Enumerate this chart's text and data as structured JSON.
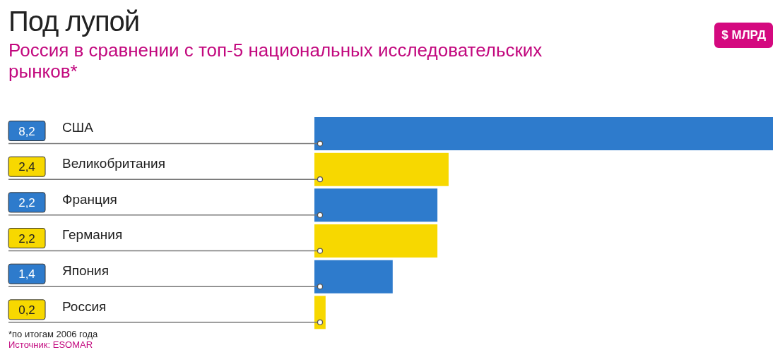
{
  "chart_data": {
    "type": "bar",
    "orientation": "horizontal",
    "title": "Под лупой",
    "subtitle": "Россия в сравнении с топ-5 национальных исследовательских рынков*",
    "categories": [
      "США",
      "Великобритания",
      "Франция",
      "Германия",
      "Япония",
      "Россия"
    ],
    "values": [
      8.2,
      2.4,
      2.2,
      2.2,
      1.4,
      0.2
    ],
    "value_labels": [
      "8,2",
      "2,4",
      "2,2",
      "2,2",
      "1,4",
      "0,2"
    ],
    "colors": [
      "#2e7bcc",
      "#f7d800",
      "#2e7bcc",
      "#f7d800",
      "#2e7bcc",
      "#f7d800"
    ],
    "annotations": [
      "$ МЛРД",
      "*по итогам 2006 года",
      "Источник: ESOMAR"
    ],
    "grid": false,
    "legend": false
  }
}
